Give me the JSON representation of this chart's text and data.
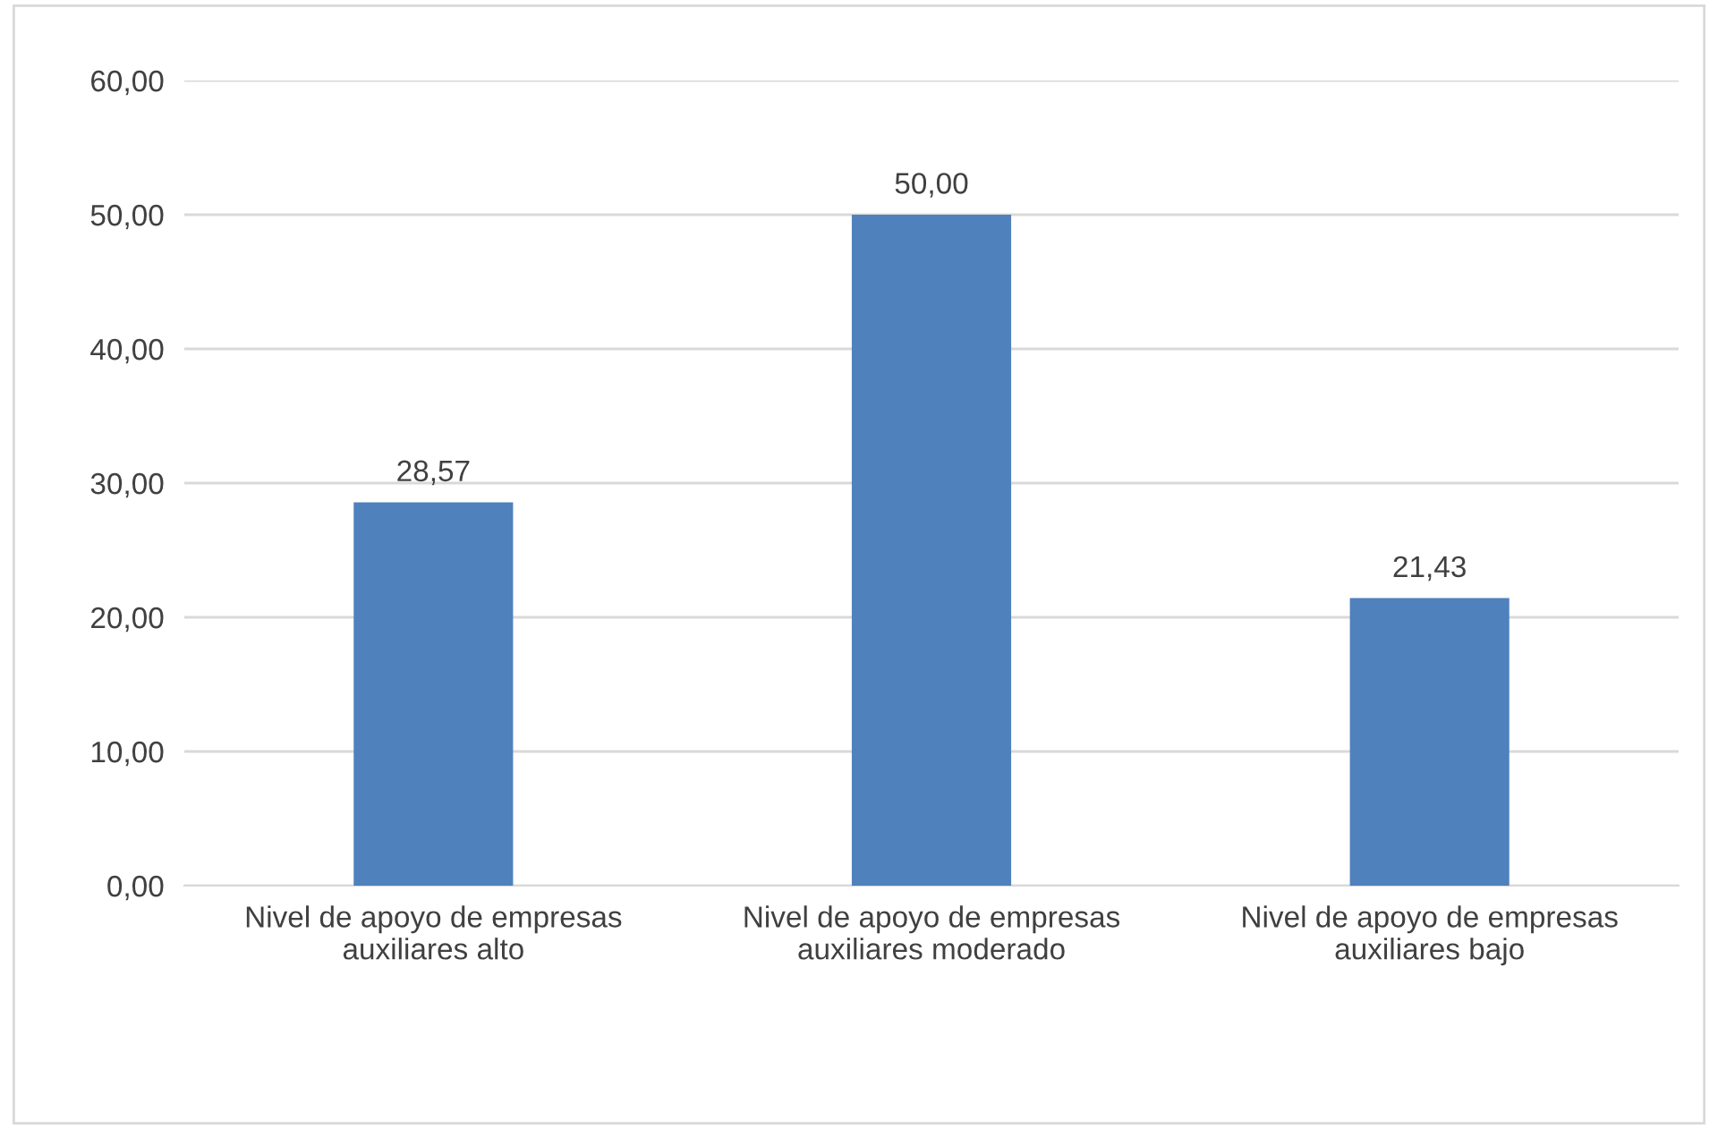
{
  "chart_data": {
    "type": "bar",
    "categories": [
      "Nivel de apoyo de empresas\nauxiliares alto",
      "Nivel de apoyo de empresas\nauxiliares moderado",
      "Nivel de apoyo de empresas\nauxiliares bajo"
    ],
    "values": [
      28.57,
      50.0,
      21.43
    ],
    "value_labels": [
      "28,57",
      "50,00",
      "21,43"
    ],
    "color": "#4f81bd",
    "ylim": [
      0,
      60
    ],
    "yticks": [
      {
        "value": 0,
        "label": "0,00"
      },
      {
        "value": 10,
        "label": "10,00"
      },
      {
        "value": 20,
        "label": "20,00"
      },
      {
        "value": 30,
        "label": "30,00"
      },
      {
        "value": 40,
        "label": "40,00"
      },
      {
        "value": 50,
        "label": "50,00"
      },
      {
        "value": 60,
        "label": "60,00"
      }
    ],
    "grid": "y",
    "legend": false
  }
}
